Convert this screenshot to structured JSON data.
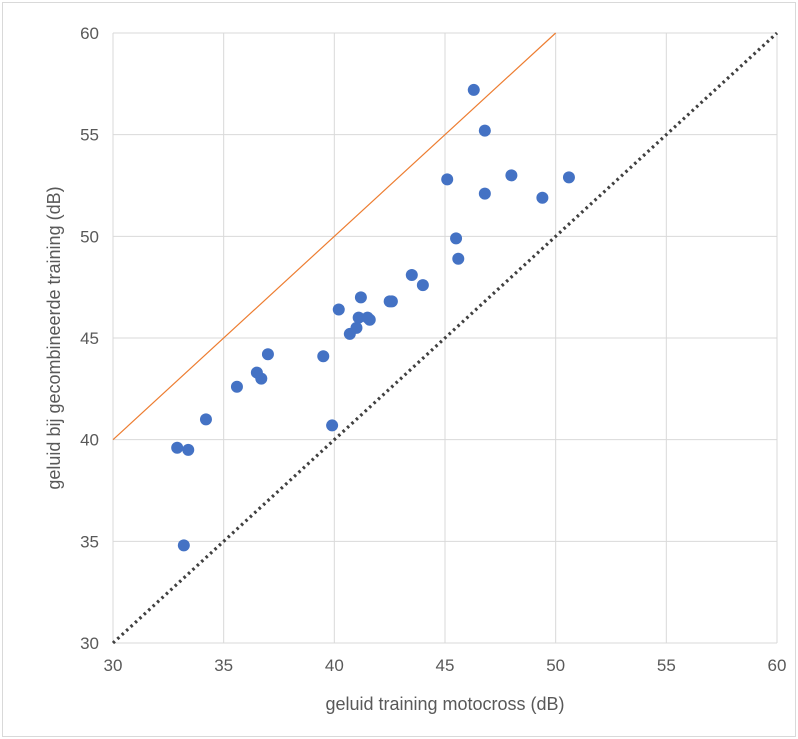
{
  "chart_data": {
    "type": "scatter",
    "title": "",
    "xlabel": "geluid training motocross (dB)",
    "ylabel": "geluid bij gecombineerde training (dB)",
    "xlim": [
      30,
      60
    ],
    "ylim": [
      30,
      60
    ],
    "x_ticks": [
      "30",
      "35",
      "40",
      "45",
      "50",
      "55",
      "60"
    ],
    "y_ticks": [
      "30",
      "35",
      "40",
      "45",
      "50",
      "55",
      "60"
    ],
    "grid": true,
    "legend": "none",
    "colors": {
      "points": "#4472c4",
      "upper_line": "#ed7d31",
      "parity_line": "#404040",
      "grid": "#d9d9d9",
      "text": "#595959"
    },
    "series": [
      {
        "type": "scatter",
        "points": [
          [
            32.9,
            39.6
          ],
          [
            33.4,
            39.5
          ],
          [
            33.2,
            34.8
          ],
          [
            34.2,
            41.0
          ],
          [
            35.6,
            42.6
          ],
          [
            36.5,
            43.3
          ],
          [
            36.7,
            43.0
          ],
          [
            37.0,
            44.2
          ],
          [
            39.5,
            44.1
          ],
          [
            39.9,
            40.7
          ],
          [
            40.2,
            46.4
          ],
          [
            40.7,
            45.2
          ],
          [
            41.0,
            45.5
          ],
          [
            41.1,
            46.0
          ],
          [
            41.2,
            47.0
          ],
          [
            41.5,
            46.0
          ],
          [
            41.6,
            45.9
          ],
          [
            42.5,
            46.8
          ],
          [
            42.6,
            46.8
          ],
          [
            43.5,
            48.1
          ],
          [
            44.0,
            47.6
          ],
          [
            45.1,
            52.8
          ],
          [
            45.5,
            49.9
          ],
          [
            45.6,
            48.9
          ],
          [
            46.3,
            57.2
          ],
          [
            46.8,
            55.2
          ],
          [
            46.8,
            52.1
          ],
          [
            48.0,
            53.0
          ],
          [
            49.4,
            51.9
          ],
          [
            50.6,
            52.9
          ]
        ]
      },
      {
        "type": "line",
        "style": "solid",
        "points": [
          [
            30,
            40
          ],
          [
            50,
            60
          ]
        ]
      },
      {
        "type": "line",
        "style": "dotted",
        "points": [
          [
            30,
            30
          ],
          [
            60,
            60
          ]
        ]
      }
    ]
  }
}
